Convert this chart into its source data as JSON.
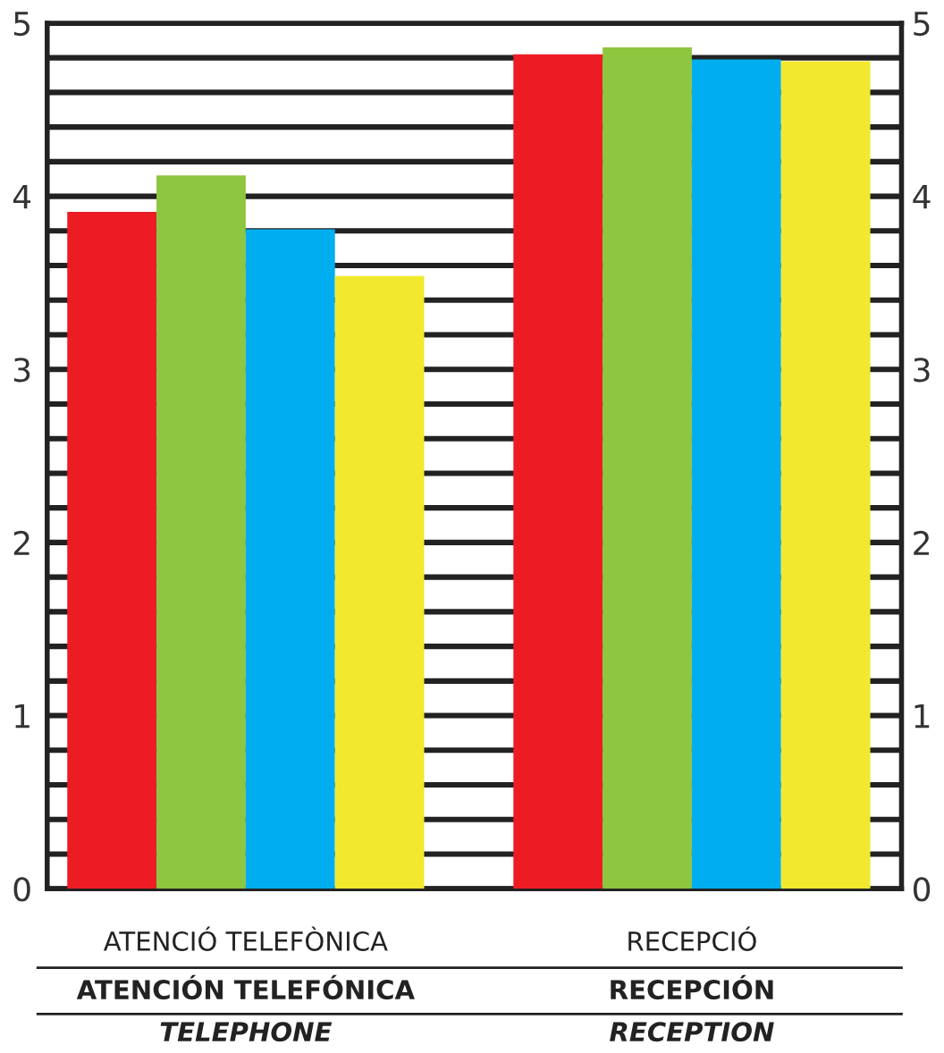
{
  "chart_data": {
    "type": "bar",
    "categories": [
      "ATENCIÓ TELEFÒNICA\nATENCIÓN TELEFÓNICA\nTELEPHONE",
      "RECEPCIÓ\nRECEPCIÓN\nRECEPTION"
    ],
    "series": [
      {
        "color": "#ed1c24",
        "values": [
          3.91,
          4.82
        ]
      },
      {
        "color": "#8dc63f",
        "values": [
          4.12,
          4.86
        ]
      },
      {
        "color": "#00aeef",
        "values": [
          3.81,
          4.79
        ]
      },
      {
        "color": "#f2e92f",
        "values": [
          3.54,
          4.78
        ]
      }
    ],
    "ylim": [
      0,
      5
    ],
    "yticks": [
      0,
      {
        "value": 0.2,
        "label": null
      },
      {
        "value": 0.4,
        "label": null
      },
      {
        "value": 0.6,
        "label": null
      },
      {
        "value": 0.8,
        "label": null
      },
      1,
      {
        "value": 1.2,
        "label": null
      },
      {
        "value": 1.4,
        "label": null
      },
      {
        "value": 1.6,
        "label": null
      },
      {
        "value": 1.8,
        "label": null
      },
      2,
      {
        "value": 2.2,
        "label": null
      },
      {
        "value": 2.4,
        "label": null
      },
      {
        "value": 2.6,
        "label": null
      },
      {
        "value": 2.8,
        "label": null
      },
      3,
      {
        "value": 3.2,
        "label": null
      },
      {
        "value": 3.4,
        "label": null
      },
      {
        "value": 3.6,
        "label": null
      },
      {
        "value": 3.8,
        "label": null
      },
      4,
      {
        "value": 4.2,
        "label": null
      },
      {
        "value": 4.4,
        "label": null
      },
      {
        "value": 4.6,
        "label": null
      },
      {
        "value": 4.8,
        "label": null
      },
      5
    ],
    "y2lim": [
      0,
      5
    ],
    "y2ticks": [
      0,
      1,
      2,
      3,
      4,
      5
    ],
    "grid": "y",
    "legend": false
  }
}
